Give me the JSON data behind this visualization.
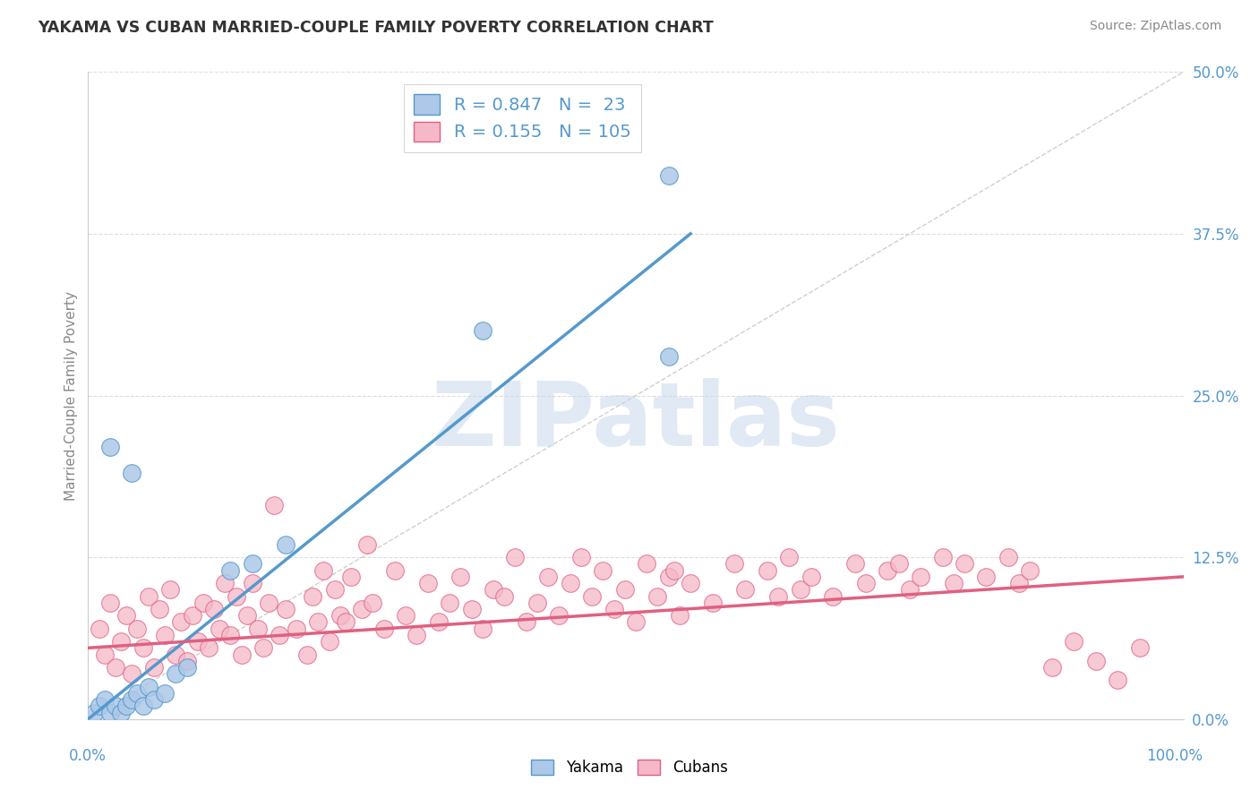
{
  "title": "YAKAMA VS CUBAN MARRIED-COUPLE FAMILY POVERTY CORRELATION CHART",
  "source": "Source: ZipAtlas.com",
  "ylabel": "Married-Couple Family Poverty",
  "yakama_R": 0.847,
  "yakama_N": 23,
  "cuban_R": 0.155,
  "cuban_N": 105,
  "yakama_color": "#adc8e8",
  "cuban_color": "#f5b8c8",
  "yakama_line_color": "#5599cc",
  "cuban_line_color": "#e06080",
  "diagonal_color": "#bbbbbb",
  "yakama_points": [
    [
      0.5,
      0.5
    ],
    [
      1.0,
      1.0
    ],
    [
      1.5,
      1.5
    ],
    [
      2.0,
      0.5
    ],
    [
      2.5,
      1.0
    ],
    [
      3.0,
      0.5
    ],
    [
      3.5,
      1.0
    ],
    [
      4.0,
      1.5
    ],
    [
      4.5,
      2.0
    ],
    [
      5.0,
      1.0
    ],
    [
      5.5,
      2.5
    ],
    [
      6.0,
      1.5
    ],
    [
      7.0,
      2.0
    ],
    [
      8.0,
      3.5
    ],
    [
      9.0,
      4.0
    ],
    [
      2.0,
      21.0
    ],
    [
      4.0,
      19.0
    ],
    [
      13.0,
      11.5
    ],
    [
      15.0,
      12.0
    ],
    [
      18.0,
      13.5
    ],
    [
      36.0,
      30.0
    ],
    [
      53.0,
      42.0
    ],
    [
      53.0,
      28.0
    ]
  ],
  "cuban_points": [
    [
      1.0,
      7.0
    ],
    [
      1.5,
      5.0
    ],
    [
      2.0,
      9.0
    ],
    [
      2.5,
      4.0
    ],
    [
      3.0,
      6.0
    ],
    [
      3.5,
      8.0
    ],
    [
      4.0,
      3.5
    ],
    [
      4.5,
      7.0
    ],
    [
      5.0,
      5.5
    ],
    [
      5.5,
      9.5
    ],
    [
      6.0,
      4.0
    ],
    [
      6.5,
      8.5
    ],
    [
      7.0,
      6.5
    ],
    [
      7.5,
      10.0
    ],
    [
      8.0,
      5.0
    ],
    [
      8.5,
      7.5
    ],
    [
      9.0,
      4.5
    ],
    [
      9.5,
      8.0
    ],
    [
      10.0,
      6.0
    ],
    [
      10.5,
      9.0
    ],
    [
      11.0,
      5.5
    ],
    [
      11.5,
      8.5
    ],
    [
      12.0,
      7.0
    ],
    [
      12.5,
      10.5
    ],
    [
      13.0,
      6.5
    ],
    [
      13.5,
      9.5
    ],
    [
      14.0,
      5.0
    ],
    [
      14.5,
      8.0
    ],
    [
      15.0,
      10.5
    ],
    [
      15.5,
      7.0
    ],
    [
      16.0,
      5.5
    ],
    [
      16.5,
      9.0
    ],
    [
      17.0,
      16.5
    ],
    [
      17.5,
      6.5
    ],
    [
      18.0,
      8.5
    ],
    [
      19.0,
      7.0
    ],
    [
      20.0,
      5.0
    ],
    [
      20.5,
      9.5
    ],
    [
      21.0,
      7.5
    ],
    [
      21.5,
      11.5
    ],
    [
      22.0,
      6.0
    ],
    [
      22.5,
      10.0
    ],
    [
      23.0,
      8.0
    ],
    [
      23.5,
      7.5
    ],
    [
      24.0,
      11.0
    ],
    [
      25.0,
      8.5
    ],
    [
      25.5,
      13.5
    ],
    [
      26.0,
      9.0
    ],
    [
      27.0,
      7.0
    ],
    [
      28.0,
      11.5
    ],
    [
      29.0,
      8.0
    ],
    [
      30.0,
      6.5
    ],
    [
      31.0,
      10.5
    ],
    [
      32.0,
      7.5
    ],
    [
      33.0,
      9.0
    ],
    [
      34.0,
      11.0
    ],
    [
      35.0,
      8.5
    ],
    [
      36.0,
      7.0
    ],
    [
      37.0,
      10.0
    ],
    [
      38.0,
      9.5
    ],
    [
      39.0,
      12.5
    ],
    [
      40.0,
      7.5
    ],
    [
      41.0,
      9.0
    ],
    [
      42.0,
      11.0
    ],
    [
      43.0,
      8.0
    ],
    [
      44.0,
      10.5
    ],
    [
      45.0,
      12.5
    ],
    [
      46.0,
      9.5
    ],
    [
      47.0,
      11.5
    ],
    [
      48.0,
      8.5
    ],
    [
      49.0,
      10.0
    ],
    [
      50.0,
      7.5
    ],
    [
      51.0,
      12.0
    ],
    [
      52.0,
      9.5
    ],
    [
      53.0,
      11.0
    ],
    [
      53.5,
      11.5
    ],
    [
      54.0,
      8.0
    ],
    [
      55.0,
      10.5
    ],
    [
      57.0,
      9.0
    ],
    [
      59.0,
      12.0
    ],
    [
      60.0,
      10.0
    ],
    [
      62.0,
      11.5
    ],
    [
      63.0,
      9.5
    ],
    [
      64.0,
      12.5
    ],
    [
      65.0,
      10.0
    ],
    [
      66.0,
      11.0
    ],
    [
      68.0,
      9.5
    ],
    [
      70.0,
      12.0
    ],
    [
      71.0,
      10.5
    ],
    [
      73.0,
      11.5
    ],
    [
      74.0,
      12.0
    ],
    [
      75.0,
      10.0
    ],
    [
      76.0,
      11.0
    ],
    [
      78.0,
      12.5
    ],
    [
      79.0,
      10.5
    ],
    [
      80.0,
      12.0
    ],
    [
      82.0,
      11.0
    ],
    [
      84.0,
      12.5
    ],
    [
      85.0,
      10.5
    ],
    [
      86.0,
      11.5
    ],
    [
      88.0,
      4.0
    ],
    [
      90.0,
      6.0
    ],
    [
      92.0,
      4.5
    ],
    [
      94.0,
      3.0
    ],
    [
      96.0,
      5.5
    ]
  ],
  "yakama_line": [
    [
      0,
      0
    ],
    [
      55,
      37.5
    ]
  ],
  "cuban_line": [
    [
      0,
      5.5
    ],
    [
      100,
      11.0
    ]
  ],
  "ytick_labels": [
    "0.0%",
    "12.5%",
    "25.0%",
    "37.5%",
    "50.0%"
  ],
  "ytick_values": [
    0,
    12.5,
    25.0,
    37.5,
    50.0
  ],
  "xlim": [
    0,
    100
  ],
  "ylim": [
    0,
    50
  ],
  "background_color": "#ffffff",
  "grid_color": "#dddddd"
}
